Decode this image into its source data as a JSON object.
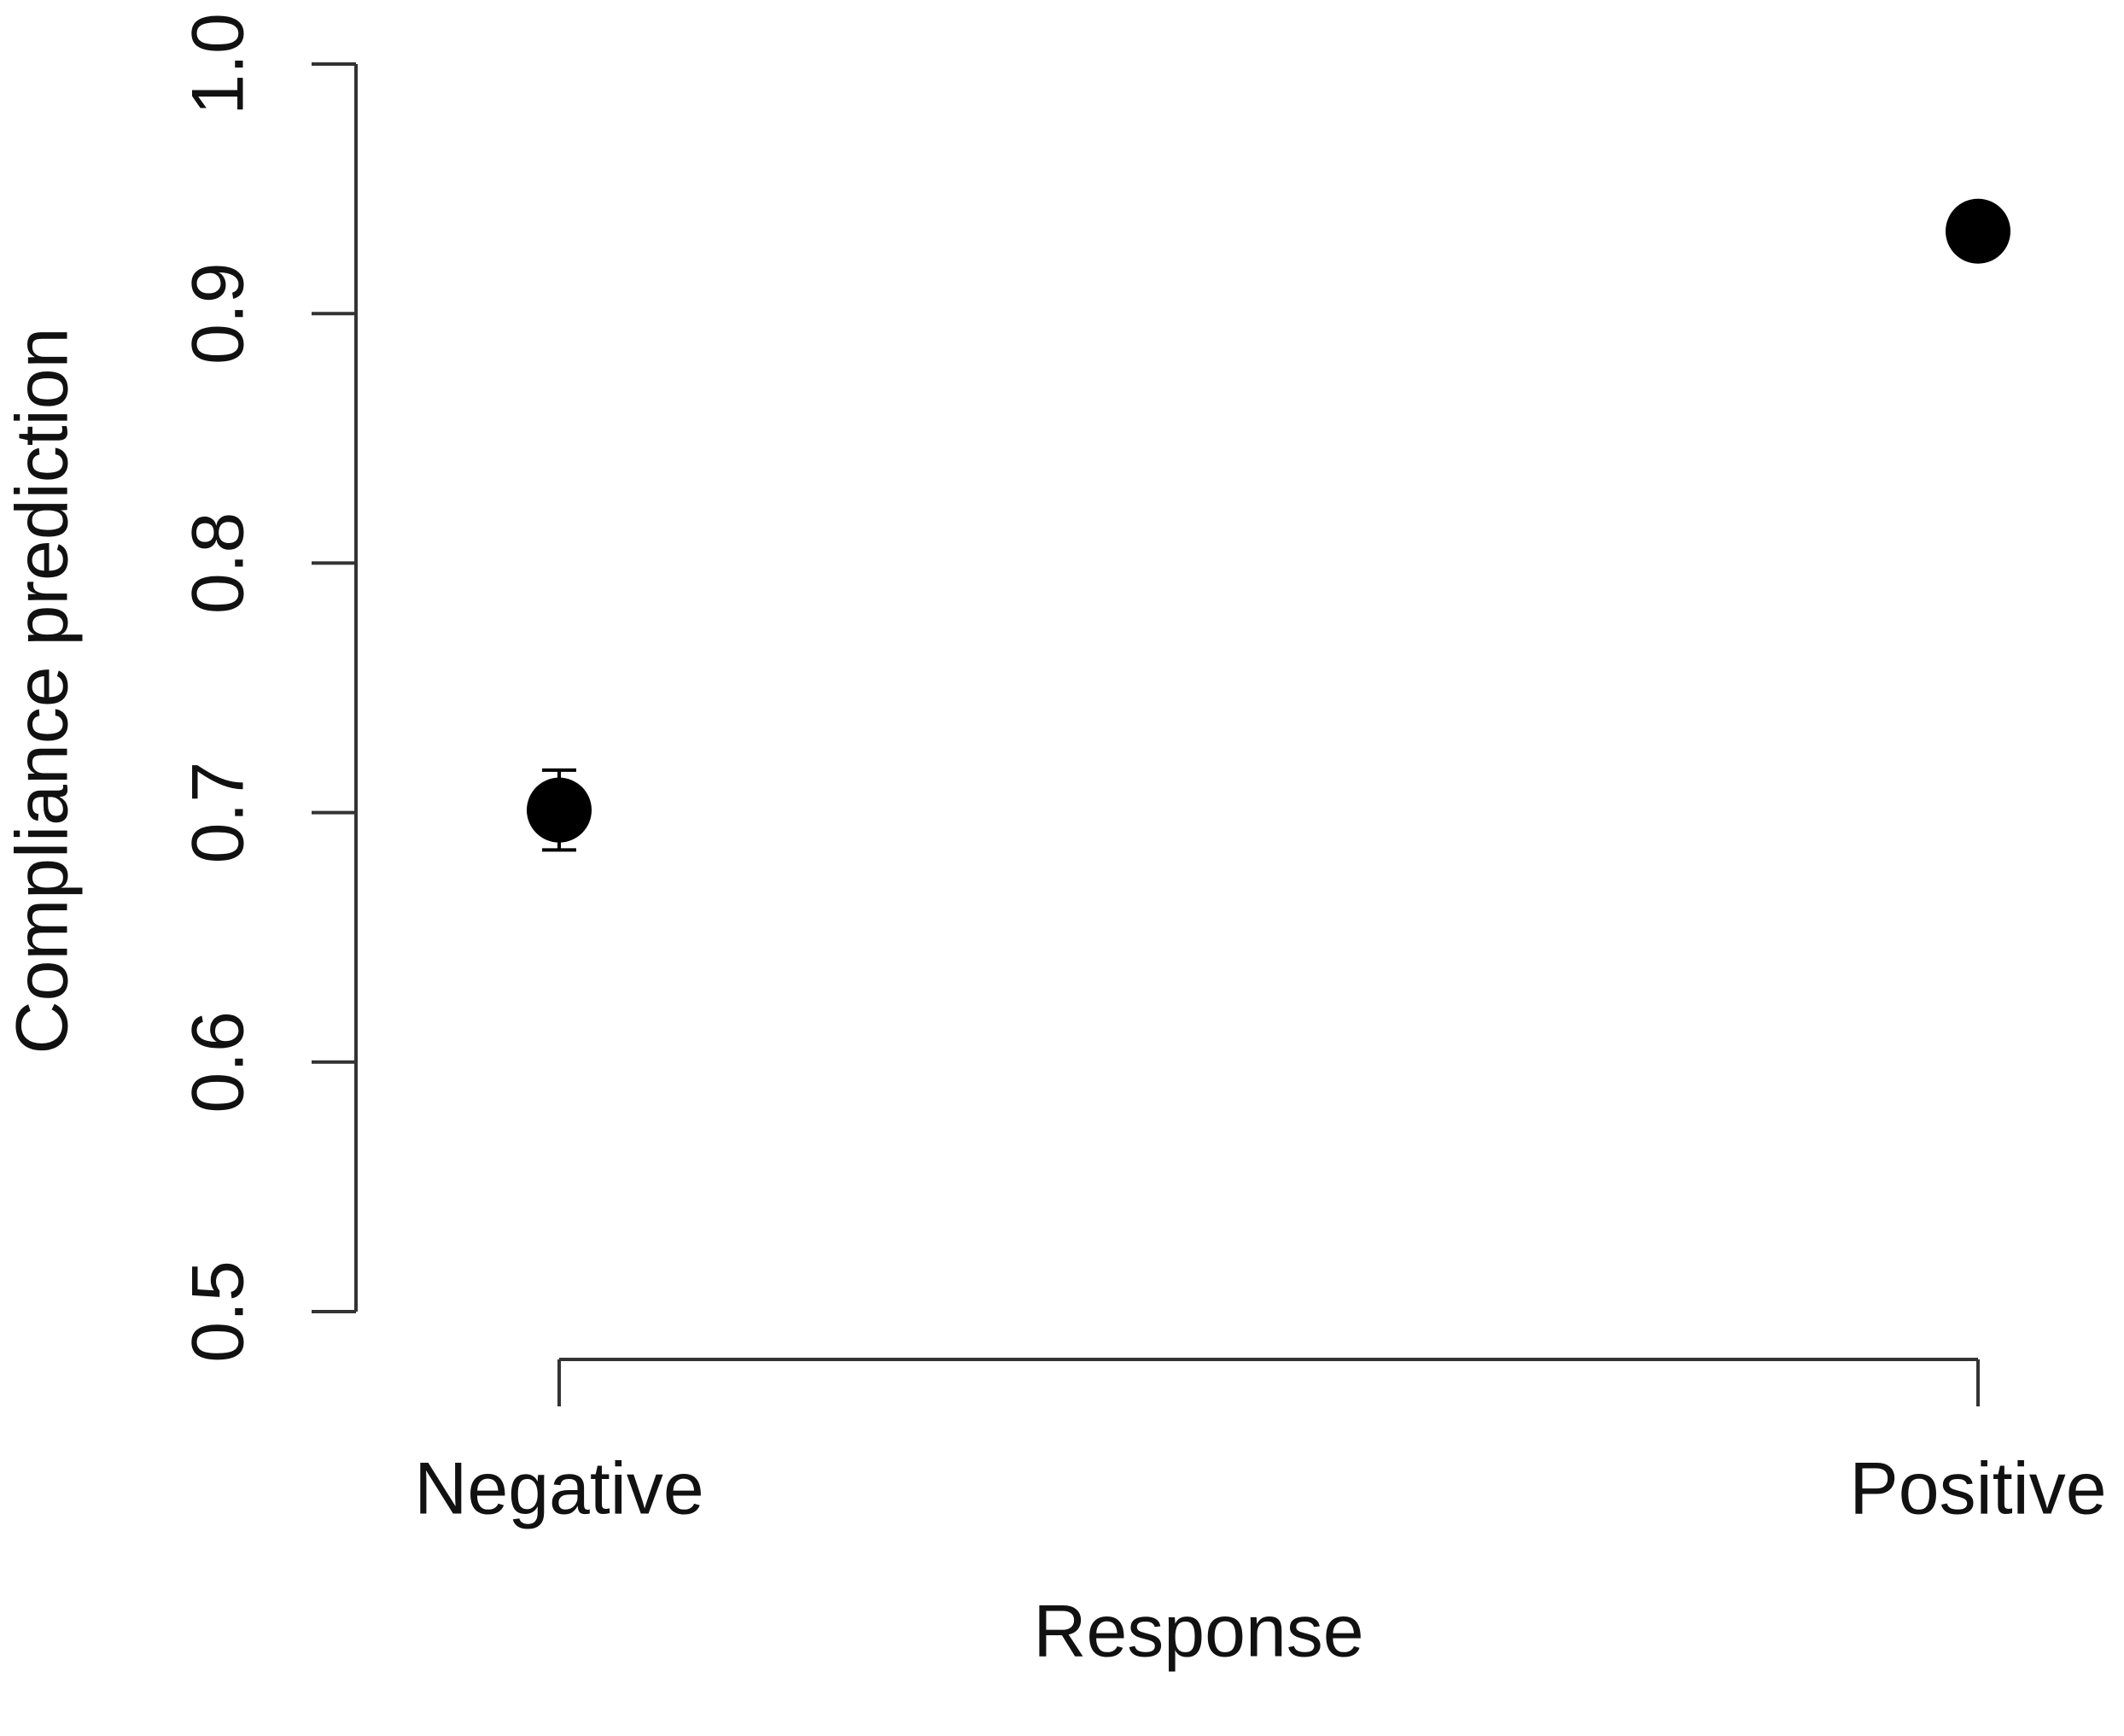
{
  "chart_data": {
    "type": "errorpoint",
    "xlabel": "Response",
    "ylabel": "Compliance prediction",
    "categories": [
      "Negative",
      "Positive"
    ],
    "values": [
      0.701,
      0.933
    ],
    "errors": [
      0.016,
      0.005
    ],
    "color": "#000000",
    "ylim": [
      0.5,
      1.0
    ],
    "yticks": [
      {
        "value": 0.5,
        "label": "0.5"
      },
      0.6,
      0.7,
      0.8,
      0.9,
      {
        "value": 1.0,
        "label": "1.0"
      }
    ]
  }
}
